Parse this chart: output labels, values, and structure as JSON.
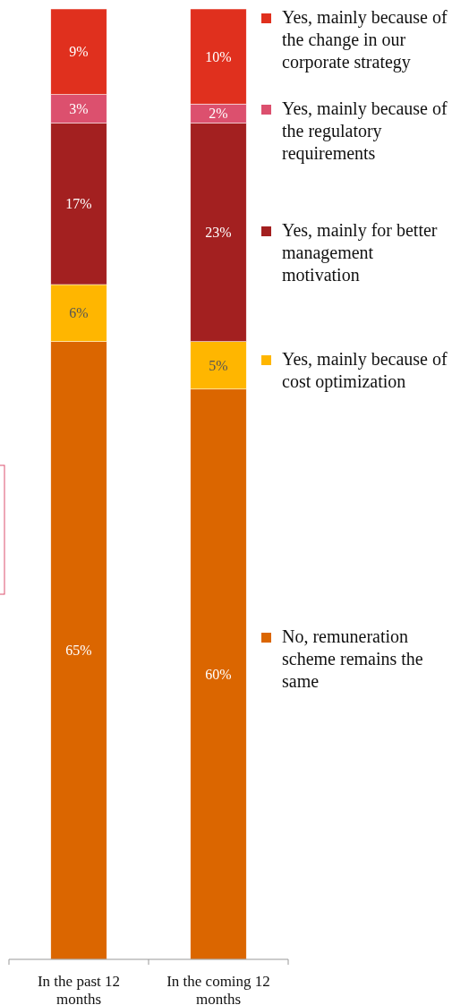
{
  "chart_data": {
    "type": "bar",
    "stacked": true,
    "categories": [
      "In the past 12 months",
      "In the coming 12 months"
    ],
    "series": [
      {
        "name": "No, remuneration scheme remains the same",
        "color": "#db6600",
        "values": [
          65,
          60
        ],
        "value_labels": [
          "65%",
          "60%"
        ]
      },
      {
        "name": "Yes, mainly because of cost optimization",
        "color": "#ffb600",
        "values": [
          6,
          5
        ],
        "value_labels": [
          "6%",
          "5%"
        ]
      },
      {
        "name": "Yes, mainly for better management motivation",
        "color": "#a32020",
        "values": [
          17,
          23
        ],
        "value_labels": [
          "17%",
          "23%"
        ]
      },
      {
        "name": "Yes, mainly because of the regulatory requirements",
        "color": "#dc506e",
        "values": [
          3,
          2
        ],
        "value_labels": [
          "3%",
          "2%"
        ]
      },
      {
        "name": "Yes, mainly because of the change in our corporate strategy",
        "color": "#e0301e",
        "values": [
          9,
          10
        ],
        "value_labels": [
          "9%",
          "10%"
        ]
      }
    ],
    "legend": "right"
  }
}
